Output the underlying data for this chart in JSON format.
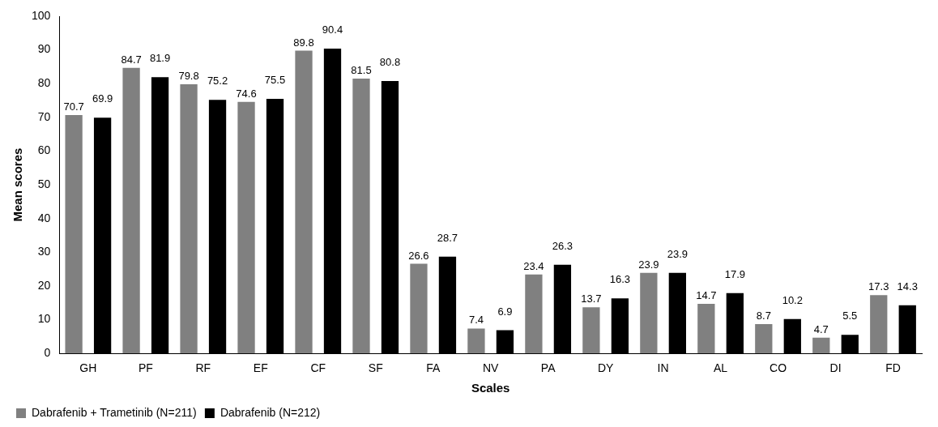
{
  "chart_data": {
    "type": "bar",
    "xlabel": "Scales",
    "ylabel": "Mean scores",
    "categories": [
      "GH",
      "PF",
      "RF",
      "EF",
      "CF",
      "SF",
      "FA",
      "NV",
      "PA",
      "DY",
      "IN",
      "AL",
      "CO",
      "DI",
      "FD"
    ],
    "series": [
      {
        "name": "Dabrafenib + Trametinib (N=211)",
        "color": "#808080",
        "values": [
          70.7,
          84.7,
          79.8,
          74.6,
          89.8,
          81.5,
          26.6,
          7.4,
          23.4,
          13.7,
          23.9,
          14.7,
          8.7,
          4.7,
          17.3
        ]
      },
      {
        "name": "Dabrafenib (N=212)",
        "color": "#000000",
        "values": [
          69.9,
          81.9,
          75.2,
          75.5,
          90.4,
          80.8,
          28.7,
          6.9,
          26.3,
          16.3,
          23.9,
          17.9,
          10.2,
          5.5,
          14.3
        ]
      }
    ],
    "ylim": [
      0,
      100
    ],
    "yticks": [
      0,
      10,
      20,
      30,
      40,
      50,
      60,
      70,
      80,
      90,
      100
    ],
    "grid": false,
    "legend": "bottom left",
    "data_labels": true
  }
}
